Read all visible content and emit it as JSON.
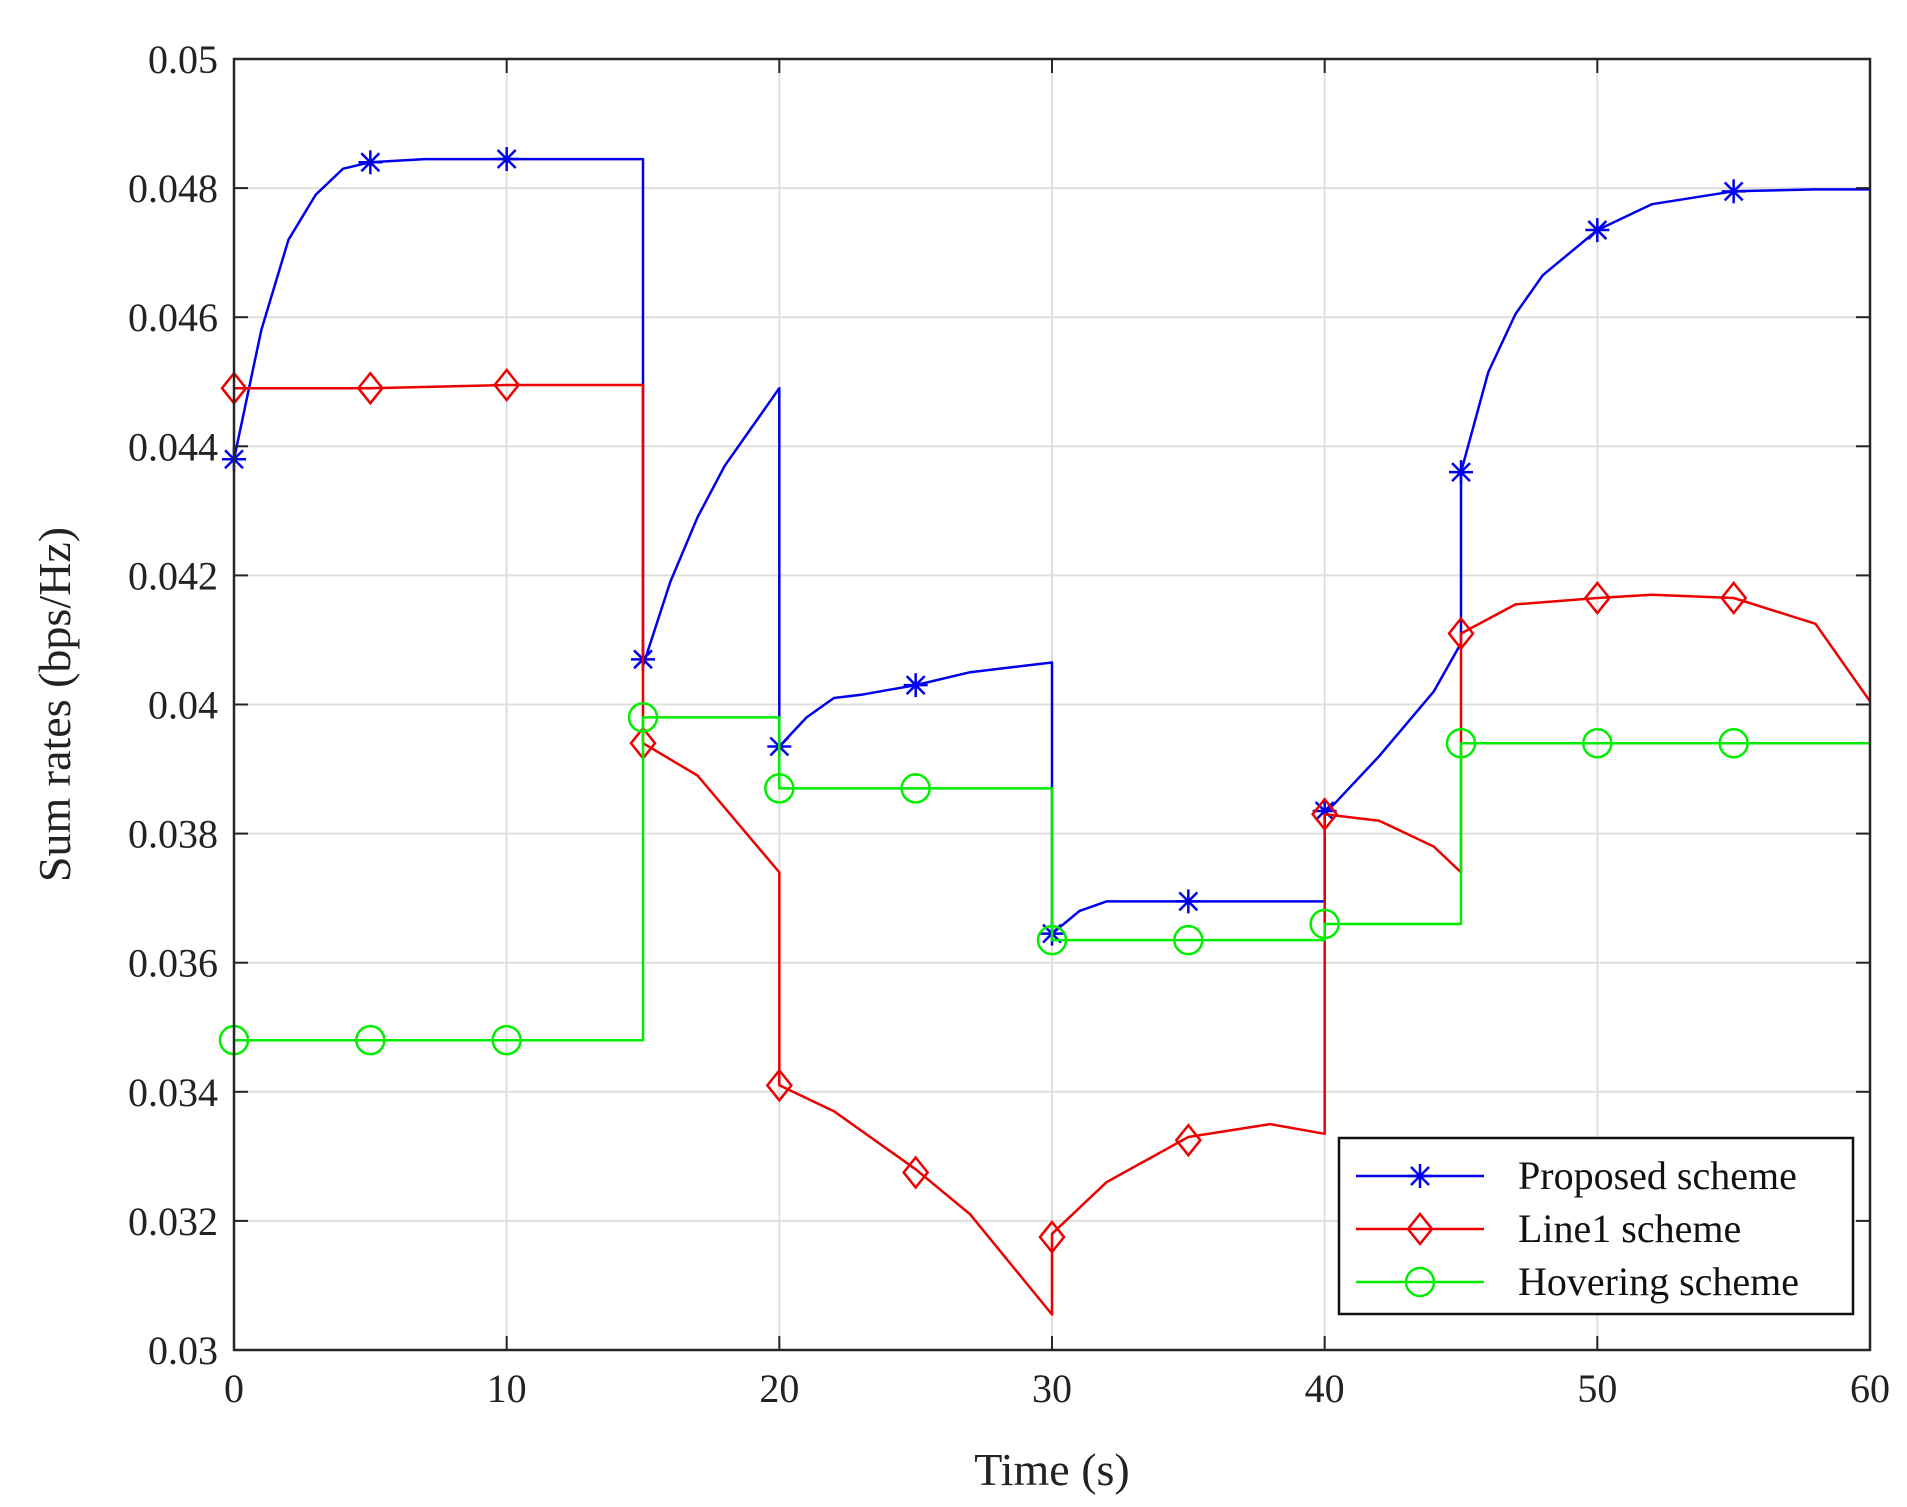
{
  "chart_data": {
    "type": "line",
    "title": "",
    "xlabel": "Time (s)",
    "ylabel": "Sum rates (bps/Hz)",
    "xlim": [
      0,
      60
    ],
    "ylim": [
      0.03,
      0.05
    ],
    "xticks": [
      0,
      10,
      20,
      30,
      40,
      50,
      60
    ],
    "xtick_labels": [
      "0",
      "10",
      "20",
      "30",
      "40",
      "50",
      "60"
    ],
    "yticks": [
      0.03,
      0.032,
      0.034,
      0.036,
      0.038,
      0.04,
      0.042,
      0.044,
      0.046,
      0.048,
      0.05
    ],
    "ytick_labels": [
      "0.03",
      "0.032",
      "0.034",
      "0.036",
      "0.038",
      "0.04",
      "0.042",
      "0.044",
      "0.046",
      "0.048",
      "0.05"
    ],
    "grid": true,
    "legend_position": "bottom-right",
    "series": [
      {
        "name": "Proposed scheme",
        "color": "#0000ee",
        "marker": "asterisk",
        "line": [
          [
            0,
            0.0438
          ],
          [
            1,
            0.0458
          ],
          [
            2,
            0.0472
          ],
          [
            3,
            0.0479
          ],
          [
            4,
            0.0483
          ],
          [
            5,
            0.0484
          ],
          [
            7,
            0.04845
          ],
          [
            10,
            0.04845
          ],
          [
            15,
            0.04845
          ],
          [
            15,
            0.0406
          ],
          [
            16,
            0.0419
          ],
          [
            17,
            0.0429
          ],
          [
            18,
            0.0437
          ],
          [
            19,
            0.0443
          ],
          [
            20,
            0.0449
          ],
          [
            20,
            0.03935
          ],
          [
            21,
            0.0398
          ],
          [
            22,
            0.0401
          ],
          [
            23,
            0.04015
          ],
          [
            25,
            0.0403
          ],
          [
            27,
            0.0405
          ],
          [
            30,
            0.04065
          ],
          [
            30,
            0.03645
          ],
          [
            31,
            0.0368
          ],
          [
            32,
            0.03695
          ],
          [
            35,
            0.03695
          ],
          [
            40,
            0.03695
          ],
          [
            40,
            0.0383
          ],
          [
            42,
            0.0392
          ],
          [
            44,
            0.0402
          ],
          [
            45,
            0.04095
          ],
          [
            45,
            0.0436
          ],
          [
            46,
            0.04515
          ],
          [
            47,
            0.04605
          ],
          [
            48,
            0.04665
          ],
          [
            50,
            0.04735
          ],
          [
            52,
            0.04775
          ],
          [
            55,
            0.04795
          ],
          [
            58,
            0.04798
          ],
          [
            60,
            0.04798
          ]
        ],
        "markers_x": [
          0,
          5,
          10,
          15,
          20,
          25,
          30,
          35,
          40,
          45,
          50,
          55
        ],
        "markers_y": [
          0.0438,
          0.0484,
          0.04845,
          0.0407,
          0.03935,
          0.0403,
          0.03645,
          0.03695,
          0.03835,
          0.0436,
          0.04735,
          0.04795
        ]
      },
      {
        "name": "Line1 scheme",
        "color": "#ee0000",
        "marker": "diamond",
        "line": [
          [
            0,
            0.0449
          ],
          [
            5,
            0.0449
          ],
          [
            10,
            0.04495
          ],
          [
            15,
            0.04495
          ],
          [
            15,
            0.0394
          ],
          [
            17,
            0.0389
          ],
          [
            20,
            0.0374
          ],
          [
            20,
            0.0341
          ],
          [
            22,
            0.0337
          ],
          [
            25,
            0.0328
          ],
          [
            27,
            0.0321
          ],
          [
            30,
            0.03055
          ],
          [
            30,
            0.0318
          ],
          [
            32,
            0.0326
          ],
          [
            35,
            0.0333
          ],
          [
            38,
            0.0335
          ],
          [
            40,
            0.03335
          ],
          [
            40,
            0.0383
          ],
          [
            42,
            0.0382
          ],
          [
            44,
            0.0378
          ],
          [
            45,
            0.0374
          ],
          [
            45,
            0.0411
          ],
          [
            47,
            0.04155
          ],
          [
            50,
            0.04165
          ],
          [
            52,
            0.0417
          ],
          [
            55,
            0.04165
          ],
          [
            58,
            0.04125
          ],
          [
            60,
            0.04005
          ]
        ],
        "markers_x": [
          0,
          5,
          10,
          15,
          20,
          25,
          30,
          35,
          40,
          45,
          50,
          55
        ],
        "markers_y": [
          0.0449,
          0.0449,
          0.04495,
          0.0394,
          0.0341,
          0.03275,
          0.03175,
          0.03325,
          0.0383,
          0.0411,
          0.04165,
          0.04165
        ]
      },
      {
        "name": "Hovering scheme",
        "color": "#00ee00",
        "marker": "circle",
        "line": [
          [
            0,
            0.0348
          ],
          [
            15,
            0.0348
          ],
          [
            15,
            0.0398
          ],
          [
            20,
            0.0398
          ],
          [
            20,
            0.0387
          ],
          [
            30,
            0.0387
          ],
          [
            30,
            0.03635
          ],
          [
            40,
            0.03635
          ],
          [
            40,
            0.0366
          ],
          [
            45,
            0.0366
          ],
          [
            45,
            0.0394
          ],
          [
            60,
            0.0394
          ]
        ],
        "markers_x": [
          0,
          5,
          10,
          15,
          20,
          25,
          30,
          35,
          40,
          45,
          50,
          55
        ],
        "markers_y": [
          0.0348,
          0.0348,
          0.0348,
          0.0398,
          0.0387,
          0.0387,
          0.03635,
          0.03635,
          0.0366,
          0.0394,
          0.0394,
          0.0394
        ]
      }
    ]
  }
}
